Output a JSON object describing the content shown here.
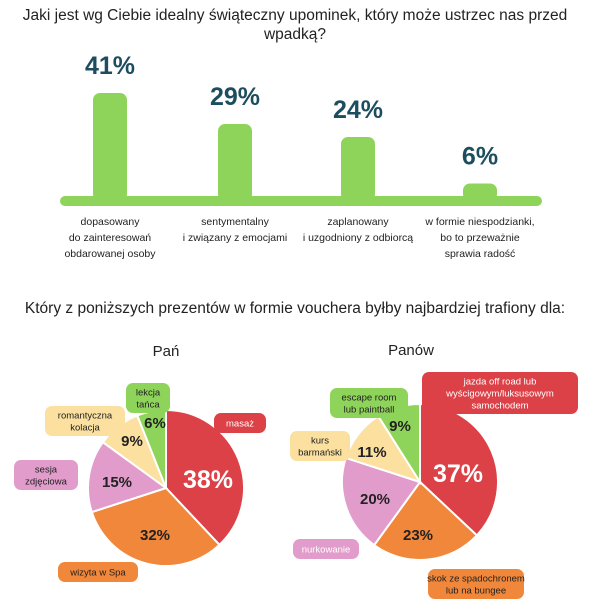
{
  "question1": "Jaki jest wg Ciebie idealny świąteczny upominek, który może ustrzec nas przed wpadką?",
  "question2": "Który z poniższych prezentów w formie vouchera byłby najbardziej trafiony dla:",
  "colors": {
    "bar": "#8fd45a",
    "pct_text": "#1d4e5f",
    "red": "#dc4147",
    "orange": "#f0873a",
    "pink": "#e19ccb",
    "yellow": "#fbe0a0",
    "green": "#8fd45a"
  },
  "chart_data": [
    {
      "type": "bar",
      "title": "Jaki jest wg Ciebie idealny świąteczny upominek, który może ustrzec nas przed wpadką?",
      "categories": [
        [
          "dopasowany",
          "do zainteresowań",
          "obdarowanej osoby"
        ],
        [
          "sentymentalny",
          "i związany z emocjami"
        ],
        [
          "zaplanowany",
          "i uzgodniony z odbiorcą"
        ],
        [
          "w formie niespodzianki,",
          "bo to przeważnie",
          "sprawia radość"
        ]
      ],
      "values": [
        41,
        29,
        24,
        6
      ],
      "value_labels": [
        "41%",
        "29%",
        "24%",
        "6%"
      ],
      "ylim": [
        0,
        41
      ]
    },
    {
      "type": "pie",
      "title": "Pań",
      "slices": [
        {
          "label": "masaż",
          "value": 38,
          "value_label": "38%",
          "color": "#dc4147"
        },
        {
          "label": "wizyta w Spa",
          "value": 32,
          "value_label": "32%",
          "color": "#f0873a"
        },
        {
          "label": "sesja zdjęciowa",
          "value": 15,
          "value_label": "15%",
          "color": "#e19ccb"
        },
        {
          "label": "romantyczna kolacja",
          "value": 9,
          "value_label": "9%",
          "color": "#fbe0a0"
        },
        {
          "label": "lekcja tańca",
          "value": 6,
          "value_label": "6%",
          "color": "#8fd45a"
        }
      ]
    },
    {
      "type": "pie",
      "title": "Panów",
      "slices": [
        {
          "label": "jazda off road lub wyścigowym/luksusowym samochodem",
          "value": 37,
          "value_label": "37%",
          "color": "#dc4147"
        },
        {
          "label": "skok ze spadochronem lub na bungee",
          "value": 23,
          "value_label": "23%",
          "color": "#f0873a"
        },
        {
          "label": "nurkowanie",
          "value": 20,
          "value_label": "20%",
          "color": "#e19ccb"
        },
        {
          "label": "kurs barmański",
          "value": 11,
          "value_label": "11%",
          "color": "#fbe0a0"
        },
        {
          "label": "escape room lub paintball",
          "value": 9,
          "value_label": "9%",
          "color": "#8fd45a"
        }
      ]
    }
  ]
}
